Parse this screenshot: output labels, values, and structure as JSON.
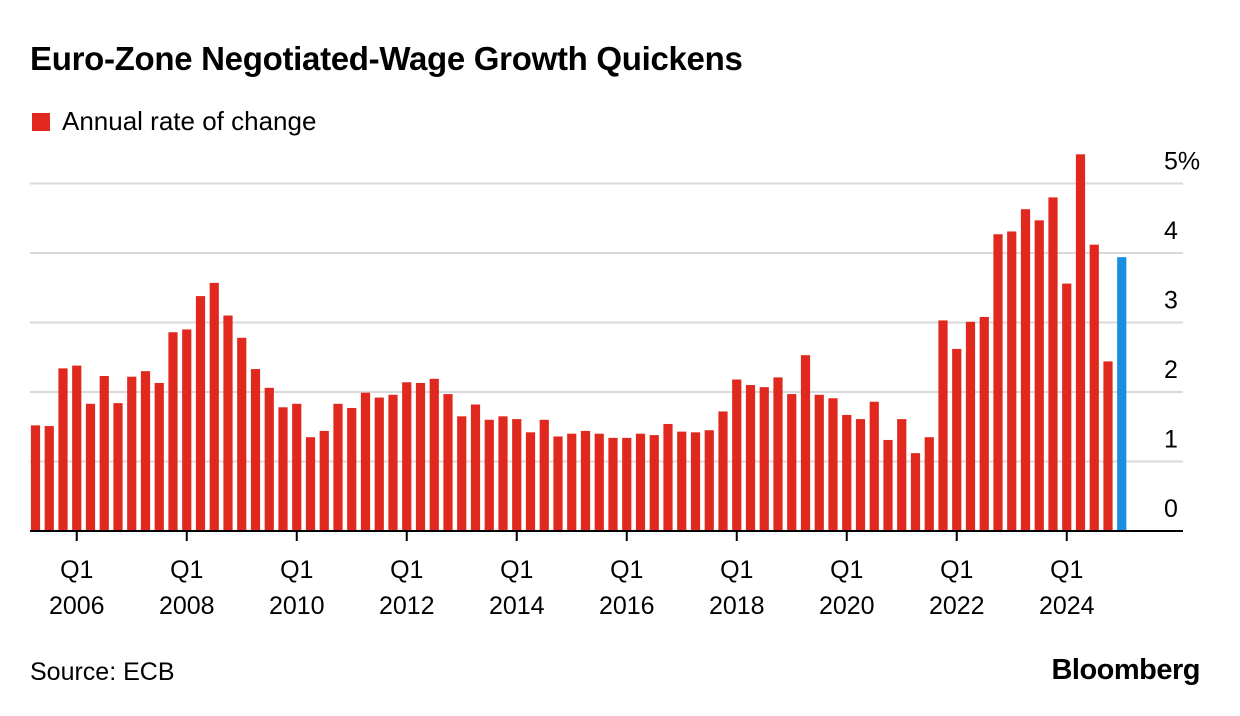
{
  "header": {
    "title": "Euro-Zone Negotiated-Wage Growth Quickens"
  },
  "legend": {
    "label": "Annual rate of change"
  },
  "footer": {
    "source": "Source: ECB",
    "brand": "Bloomberg"
  },
  "colors": {
    "bar": "#e0281f",
    "highlight": "#1a8ee0",
    "grid": "#d9d9d9",
    "axis": "#000000"
  },
  "chart_data": {
    "type": "bar",
    "title": "Euro-Zone Negotiated-Wage Growth Quickens",
    "series_name": "Annual rate of change",
    "xlabel": "",
    "ylabel": "",
    "ylim": [
      0,
      5
    ],
    "y_ticks": [
      0,
      1,
      2,
      3,
      4,
      5
    ],
    "y_tick_labels": [
      "0",
      "1",
      "2",
      "3",
      "4",
      "5%"
    ],
    "first_quarter": "2005 Q2",
    "x_tick_labels": [
      {
        "quarter_index": 3,
        "line1": "Q1",
        "line2": "2006"
      },
      {
        "quarter_index": 11,
        "line1": "Q1",
        "line2": "2008"
      },
      {
        "quarter_index": 19,
        "line1": "Q1",
        "line2": "2010"
      },
      {
        "quarter_index": 27,
        "line1": "Q1",
        "line2": "2012"
      },
      {
        "quarter_index": 35,
        "line1": "Q1",
        "line2": "2014"
      },
      {
        "quarter_index": 43,
        "line1": "Q1",
        "line2": "2016"
      },
      {
        "quarter_index": 51,
        "line1": "Q1",
        "line2": "2018"
      },
      {
        "quarter_index": 59,
        "line1": "Q1",
        "line2": "2020"
      },
      {
        "quarter_index": 67,
        "line1": "Q1",
        "line2": "2022"
      },
      {
        "quarter_index": 75,
        "line1": "Q1",
        "line2": "2024"
      }
    ],
    "values": [
      1.52,
      1.51,
      2.34,
      2.38,
      1.83,
      2.23,
      1.84,
      2.22,
      2.3,
      2.13,
      2.86,
      2.9,
      3.38,
      3.57,
      3.1,
      2.78,
      2.33,
      2.06,
      1.78,
      1.83,
      1.35,
      1.44,
      1.83,
      1.77,
      1.99,
      1.92,
      1.96,
      2.14,
      2.13,
      2.19,
      1.97,
      1.65,
      1.82,
      1.6,
      1.65,
      1.61,
      1.42,
      1.6,
      1.36,
      1.4,
      1.44,
      1.4,
      1.34,
      1.34,
      1.4,
      1.38,
      1.54,
      1.43,
      1.42,
      1.45,
      1.72,
      2.18,
      2.1,
      2.07,
      2.21,
      1.97,
      2.53,
      1.96,
      1.91,
      1.67,
      1.61,
      1.86,
      1.31,
      1.61,
      1.12,
      1.35,
      3.03,
      2.62,
      3.01,
      3.08,
      4.27,
      4.31,
      4.63,
      4.47,
      4.8,
      3.56,
      5.42,
      4.12,
      2.44,
      3.94
    ],
    "highlight_index": 79
  }
}
